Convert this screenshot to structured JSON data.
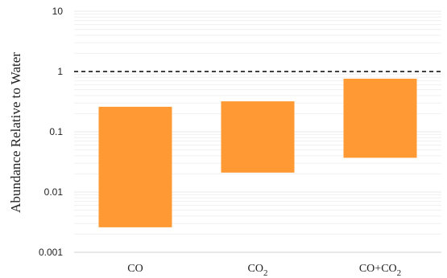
{
  "chart_data": {
    "type": "bar",
    "subtype": "floating-range",
    "y_scale": "log",
    "ylim": [
      0.001,
      10
    ],
    "ylabel": "Abundance Relative to Water",
    "y_ticks": [
      {
        "value": 10,
        "label": "10"
      },
      {
        "value": 1,
        "label": "1"
      },
      {
        "value": 0.1,
        "label": "0.1"
      },
      {
        "value": 0.01,
        "label": "0.01"
      },
      {
        "value": 0.001,
        "label": "0.001"
      }
    ],
    "categories": [
      {
        "id": "co",
        "label_main": "CO",
        "label_sub": ""
      },
      {
        "id": "co2",
        "label_main": "CO",
        "label_sub": "2"
      },
      {
        "id": "co-co2",
        "label_main": "CO+CO",
        "label_sub": "2"
      }
    ],
    "ranges": [
      {
        "low": 0.0026,
        "high": 0.26
      },
      {
        "low": 0.021,
        "high": 0.32
      },
      {
        "low": 0.037,
        "high": 0.76
      }
    ],
    "reference_line": {
      "value": 1,
      "style": "dashed",
      "color": "#000000"
    },
    "grid": {
      "major": true,
      "minor": true
    },
    "colors": {
      "bar": "#FF9933",
      "grid": "#e8e8e8",
      "axis": "#d0d0d0",
      "text": "#222222"
    }
  }
}
